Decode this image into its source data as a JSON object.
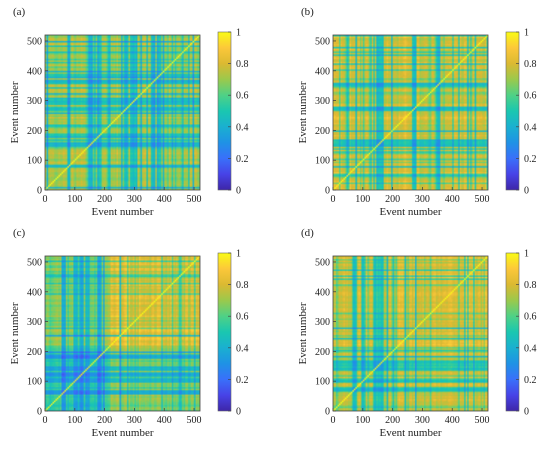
{
  "chart_data": [
    {
      "type": "heatmap",
      "panel_label": "(a)",
      "xlabel": "Event number",
      "ylabel": "Event number",
      "xlim": [
        0,
        520
      ],
      "ylim": [
        0,
        520
      ],
      "x_ticks": [
        0,
        100,
        200,
        300,
        400,
        500
      ],
      "y_ticks": [
        0,
        100,
        200,
        300,
        400,
        500
      ],
      "clim": [
        0,
        1
      ],
      "colorbar_ticks": [
        0,
        0.2,
        0.4,
        0.6,
        0.8,
        1
      ],
      "colorbar_tick_labels": [
        "0",
        "0.2",
        "0.4",
        "0.6",
        "0.8",
        "1"
      ],
      "colormap": "parula",
      "mean_similarity": 0.76,
      "low_bands": [
        150,
        180,
        270,
        290,
        300,
        360,
        380
      ],
      "blocks": []
    },
    {
      "type": "heatmap",
      "panel_label": "(b)",
      "xlabel": "Event number",
      "ylabel": "Event number",
      "xlim": [
        0,
        520
      ],
      "ylim": [
        0,
        520
      ],
      "x_ticks": [
        0,
        100,
        200,
        300,
        400,
        500
      ],
      "y_ticks": [
        0,
        100,
        200,
        300,
        400,
        500
      ],
      "clim": [
        0,
        1
      ],
      "colorbar_ticks": [
        0,
        0.2,
        0.4,
        0.6,
        0.8,
        1
      ],
      "colorbar_tick_labels": [
        "0",
        "0.2",
        "0.4",
        "0.6",
        "0.8",
        "1"
      ],
      "colormap": "parula",
      "mean_similarity": 0.84,
      "low_bands": [
        150,
        270,
        350
      ],
      "blocks": []
    },
    {
      "type": "heatmap",
      "panel_label": "(c)",
      "xlabel": "Event number",
      "ylabel": "Event number",
      "xlim": [
        0,
        520
      ],
      "ylim": [
        0,
        520
      ],
      "x_ticks": [
        0,
        100,
        200,
        300,
        400,
        500
      ],
      "y_ticks": [
        0,
        100,
        200,
        300,
        400,
        500
      ],
      "clim": [
        0,
        1
      ],
      "colorbar_ticks": [
        0,
        0.2,
        0.4,
        0.6,
        0.8,
        1
      ],
      "colorbar_tick_labels": [
        "0",
        "0.2",
        "0.4",
        "0.6",
        "0.8",
        "1"
      ],
      "colormap": "parula",
      "mean_similarity": 0.88,
      "low_bands": [
        60,
        100,
        120,
        140,
        180
      ],
      "blocks": [
        {
          "range": [
            0,
            220
          ],
          "mean_similarity": 0.6
        }
      ]
    },
    {
      "type": "heatmap",
      "panel_label": "(d)",
      "xlabel": "Event number",
      "ylabel": "Event number",
      "xlim": [
        0,
        520
      ],
      "ylim": [
        0,
        520
      ],
      "x_ticks": [
        0,
        100,
        200,
        300,
        400,
        500
      ],
      "y_ticks": [
        0,
        100,
        200,
        300,
        400,
        500
      ],
      "clim": [
        0,
        1
      ],
      "colorbar_ticks": [
        0,
        0.2,
        0.4,
        0.6,
        0.8,
        1
      ],
      "colorbar_tick_labels": [
        "0",
        "0.2",
        "0.4",
        "0.6",
        "0.8",
        "1"
      ],
      "colormap": "parula",
      "mean_similarity": 0.87,
      "low_bands": [
        70,
        100,
        140,
        150,
        160
      ],
      "blocks": [
        {
          "range": [
            0,
            220
          ],
          "mean_similarity": 0.8
        }
      ]
    }
  ]
}
